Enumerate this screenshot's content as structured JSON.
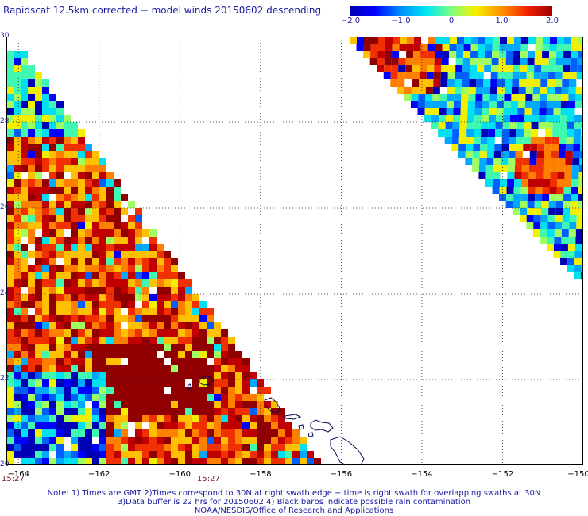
{
  "title": "Rapidscat 12.5km corrected − model winds 20150602 descending",
  "colorbar": {
    "ticks": [
      "−2.0",
      "−1.0",
      "0",
      "1.0",
      "2.0"
    ],
    "tick_values": [
      -2.0,
      -1.0,
      0,
      1.0,
      2.0
    ],
    "range": [
      -2.0,
      2.0
    ]
  },
  "map": {
    "lon_range": [
      -164.3,
      -150
    ],
    "lat_range": [
      20,
      30
    ],
    "x_ticks": [
      "−164",
      "−162",
      "−160",
      "−158",
      "−156",
      "−154",
      "−152",
      "−150"
    ],
    "x_tick_values": [
      -164,
      -162,
      -160,
      -158,
      -156,
      -154,
      -152,
      -150
    ],
    "y_ticks": [
      "30",
      "28",
      "26",
      "24",
      "22",
      "20"
    ],
    "y_tick_values": [
      30,
      28,
      26,
      24,
      22,
      20
    ],
    "grid": true
  },
  "times": [
    "15:27",
    "15:27"
  ],
  "notes": [
    "Note: 1) Times are GMT 2)Times correspond to 30N at right swath edge − time is right swath for overlapping swaths at 30N",
    "3)Data buffer is 22 hrs for 20150602 4) Black barbs indicate possible rain contamination",
    "NOAA/NESDIS/Office of Research and Applications"
  ]
}
